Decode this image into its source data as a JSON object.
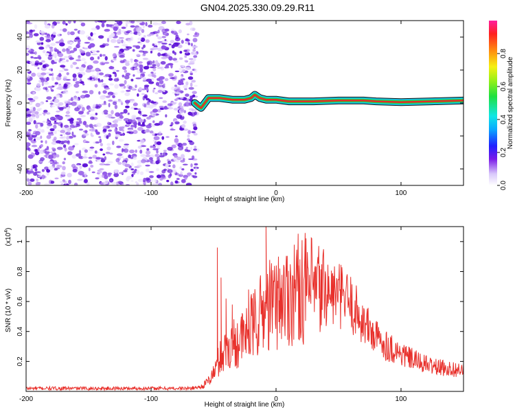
{
  "title": "GN04.2025.330.09.29.R11",
  "colors": {
    "signal": "#e8302b",
    "speckle": [
      "#5b0fd6",
      "#8a4ce6",
      "#b98df2",
      "#d9c4fa",
      "#ece2fd"
    ],
    "band_outer": "#17c4e0",
    "band_inner": "#25d23a",
    "band_core": "#e32b2b",
    "band_edge": "#111111"
  },
  "chart_data": [
    {
      "type": "heatmap",
      "xlabel": "Height of straight line (km)",
      "ylabel": "Frequency (Hz)",
      "xlim": [
        -200,
        150
      ],
      "ylim": [
        -50,
        50
      ],
      "xticks": [
        -200,
        -100,
        0,
        100
      ],
      "yticks": [
        40,
        20,
        0,
        -20,
        -40
      ],
      "noise_region_x": [
        -200,
        -63
      ],
      "ridge": [
        {
          "x": -65,
          "y": 0
        },
        {
          "x": -62,
          "y": -2
        },
        {
          "x": -60,
          "y": -3
        },
        {
          "x": -57,
          "y": 0
        },
        {
          "x": -54,
          "y": 3
        },
        {
          "x": -45,
          "y": 3
        },
        {
          "x": -35,
          "y": 2
        },
        {
          "x": -25,
          "y": 2
        },
        {
          "x": -20,
          "y": 3
        },
        {
          "x": -17,
          "y": 5
        },
        {
          "x": -13,
          "y": 3
        },
        {
          "x": -8,
          "y": 2
        },
        {
          "x": 0,
          "y": 2
        },
        {
          "x": 10,
          "y": 1
        },
        {
          "x": 30,
          "y": 1
        },
        {
          "x": 50,
          "y": 1.5
        },
        {
          "x": 70,
          "y": 1.5
        },
        {
          "x": 80,
          "y": 1
        },
        {
          "x": 100,
          "y": 0.5
        },
        {
          "x": 125,
          "y": 1
        },
        {
          "x": 150,
          "y": 1.5
        }
      ],
      "colorbar": {
        "label": "Normalized spectral amplitude",
        "ticks": [
          0.0,
          0.2,
          0.4,
          0.6,
          0.8
        ],
        "range": [
          0,
          1
        ]
      }
    },
    {
      "type": "line",
      "xlabel": "Height of straight line (km)",
      "ylabel": "SNR (10 * v/v)",
      "yscale_label": "(x10",
      "yscale_exponent": "4",
      "yscale_suffix": ")",
      "xlim": [
        -200,
        150
      ],
      "ylim": [
        0,
        1.1
      ],
      "xticks": [
        -200,
        -100,
        0,
        100
      ],
      "yticks": [
        0.2,
        0.4,
        0.6,
        0.8,
        1
      ],
      "series": [
        {
          "color": "#e8302b",
          "anchors": [
            [
              -200,
              0.02
            ],
            [
              -70,
              0.02
            ],
            [
              -60,
              0.03
            ],
            [
              -55,
              0.06
            ],
            [
              -50,
              0.12
            ],
            [
              -45,
              0.22
            ],
            [
              -40,
              0.28
            ],
            [
              -35,
              0.32
            ],
            [
              -30,
              0.34
            ],
            [
              -25,
              0.36
            ],
            [
              -20,
              0.42
            ],
            [
              -15,
              0.48
            ],
            [
              -10,
              0.54
            ],
            [
              -5,
              0.58
            ],
            [
              0,
              0.6
            ],
            [
              10,
              0.65
            ],
            [
              20,
              0.7
            ],
            [
              30,
              0.66
            ],
            [
              40,
              0.66
            ],
            [
              50,
              0.64
            ],
            [
              55,
              0.62
            ],
            [
              60,
              0.58
            ],
            [
              65,
              0.52
            ],
            [
              70,
              0.46
            ],
            [
              80,
              0.36
            ],
            [
              90,
              0.3
            ],
            [
              100,
              0.25
            ],
            [
              110,
              0.21
            ],
            [
              120,
              0.18
            ],
            [
              130,
              0.16
            ],
            [
              150,
              0.14
            ]
          ],
          "spikes": [
            [
              -47,
              0.96
            ],
            [
              -44,
              0.76
            ],
            [
              -40,
              0.62
            ],
            [
              -35,
              0.58
            ],
            [
              -22,
              0.68
            ],
            [
              -8,
              1.1
            ],
            [
              3,
              0.82
            ],
            [
              18,
              0.84
            ],
            [
              32,
              0.74
            ],
            [
              45,
              0.78
            ],
            [
              60,
              0.62
            ]
          ]
        }
      ]
    }
  ]
}
